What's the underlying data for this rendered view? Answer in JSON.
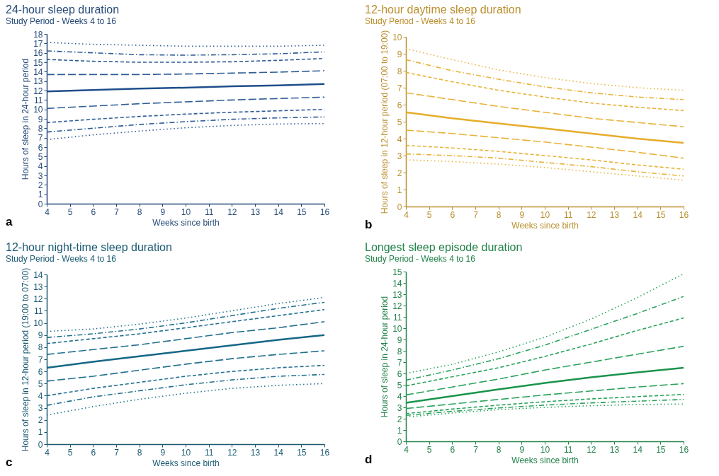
{
  "chart_data": [
    {
      "type": "line",
      "title": "24-hour sleep duration",
      "subtitle": "Study Period - Weeks 4 to 16",
      "xlabel": "Weeks since birth",
      "ylabel": "Hours of sleep in 24-hour period",
      "annotations": [
        "a"
      ],
      "x": [
        4,
        6,
        8,
        10,
        12,
        14,
        16
      ],
      "xlim": [
        4,
        16
      ],
      "xticks": [
        4,
        5,
        6,
        7,
        8,
        9,
        10,
        11,
        12,
        13,
        14,
        15,
        16
      ],
      "ylim": [
        0,
        18
      ],
      "yticks": [
        0,
        1,
        2,
        3,
        4,
        5,
        6,
        7,
        8,
        9,
        10,
        11,
        12,
        13,
        14,
        15,
        16,
        17,
        18
      ],
      "series": [
        {
          "color": "#2f5d96",
          "line_style": "dotted",
          "values": [
            17.1,
            16.9,
            16.8,
            16.7,
            16.7,
            16.7,
            16.8
          ]
        },
        {
          "color": "#2f5d96",
          "line_style": "dashdot",
          "values": [
            16.2,
            16.0,
            15.8,
            15.75,
            15.8,
            15.9,
            16.1
          ]
        },
        {
          "color": "#2f5d96",
          "line_style": "dashed",
          "values": [
            15.3,
            15.1,
            15.0,
            15.0,
            15.05,
            15.2,
            15.4
          ]
        },
        {
          "color": "#2f5d96",
          "line_style": "longdash",
          "values": [
            13.7,
            13.7,
            13.7,
            13.75,
            13.85,
            13.95,
            14.1
          ]
        },
        {
          "color": "#1f4e8c",
          "line_style": "solid",
          "values": [
            11.9,
            12.05,
            12.2,
            12.3,
            12.45,
            12.55,
            12.7
          ]
        },
        {
          "color": "#2f5d96",
          "line_style": "longdash",
          "values": [
            10.1,
            10.35,
            10.6,
            10.8,
            11.0,
            11.15,
            11.3
          ]
        },
        {
          "color": "#2f5d96",
          "line_style": "dashed",
          "values": [
            8.6,
            8.95,
            9.25,
            9.5,
            9.7,
            9.85,
            10.0
          ]
        },
        {
          "color": "#2f5d96",
          "line_style": "dashdot",
          "values": [
            7.6,
            8.0,
            8.4,
            8.7,
            8.95,
            9.1,
            9.2
          ]
        },
        {
          "color": "#2f5d96",
          "line_style": "dotted",
          "values": [
            6.8,
            7.3,
            7.7,
            8.05,
            8.3,
            8.45,
            8.5
          ]
        }
      ]
    },
    {
      "type": "line",
      "title": "12-hour daytime sleep duration",
      "subtitle": "Study Period - Weeks 4 to 16",
      "xlabel": "Weeks since birth",
      "ylabel": "Hours of sleep in 12-hour period (07:00 to 19:00)",
      "annotations": [
        "b"
      ],
      "x": [
        4,
        6,
        8,
        10,
        12,
        14,
        16
      ],
      "xlim": [
        4,
        16
      ],
      "xticks": [
        4,
        5,
        6,
        7,
        8,
        9,
        10,
        11,
        12,
        13,
        14,
        15,
        16
      ],
      "ylim": [
        0,
        10
      ],
      "yticks": [
        0,
        1,
        2,
        3,
        4,
        5,
        6,
        7,
        8,
        9,
        10
      ],
      "series": [
        {
          "color": "#e8b33a",
          "line_style": "dotted",
          "values": [
            9.3,
            8.65,
            8.05,
            7.6,
            7.25,
            7.0,
            6.85
          ]
        },
        {
          "color": "#e8b33a",
          "line_style": "dashdot",
          "values": [
            8.65,
            8.0,
            7.5,
            7.05,
            6.7,
            6.45,
            6.3
          ]
        },
        {
          "color": "#e8b33a",
          "line_style": "dashed",
          "values": [
            7.9,
            7.35,
            6.85,
            6.45,
            6.1,
            5.85,
            5.65
          ]
        },
        {
          "color": "#e8b33a",
          "line_style": "longdash",
          "values": [
            6.7,
            6.3,
            5.9,
            5.55,
            5.2,
            4.95,
            4.7
          ]
        },
        {
          "color": "#e6ad2a",
          "line_style": "solid",
          "values": [
            5.55,
            5.2,
            4.9,
            4.6,
            4.3,
            4.0,
            3.75
          ]
        },
        {
          "color": "#e8b33a",
          "line_style": "longdash",
          "values": [
            4.5,
            4.3,
            4.05,
            3.8,
            3.5,
            3.2,
            2.85
          ]
        },
        {
          "color": "#e8b33a",
          "line_style": "dashed",
          "values": [
            3.6,
            3.45,
            3.25,
            3.0,
            2.75,
            2.45,
            2.2
          ]
        },
        {
          "color": "#e8b33a",
          "line_style": "dashdot",
          "values": [
            3.1,
            3.0,
            2.85,
            2.6,
            2.35,
            2.05,
            1.8
          ]
        },
        {
          "color": "#e8b33a",
          "line_style": "dotted",
          "values": [
            2.75,
            2.65,
            2.5,
            2.3,
            2.05,
            1.8,
            1.55
          ]
        }
      ]
    },
    {
      "type": "line",
      "title": "12-hour night-time sleep duration",
      "subtitle": "Study Period - Weeks 4 to 16",
      "xlabel": "Weeks since birth",
      "ylabel": "Hours of sleep in 12-hour period (19:00 to 07:00)",
      "annotations": [
        "c"
      ],
      "x": [
        4,
        6,
        8,
        10,
        12,
        14,
        16
      ],
      "xlim": [
        4,
        16
      ],
      "xticks": [
        4,
        5,
        6,
        7,
        8,
        9,
        10,
        11,
        12,
        13,
        14,
        15,
        16
      ],
      "ylim": [
        0,
        14
      ],
      "yticks": [
        0,
        1,
        2,
        3,
        4,
        5,
        6,
        7,
        8,
        9,
        10,
        11,
        12,
        13,
        14
      ],
      "series": [
        {
          "color": "#22708f",
          "line_style": "dotted",
          "values": [
            9.3,
            9.5,
            9.9,
            10.4,
            11.0,
            11.6,
            12.1
          ]
        },
        {
          "color": "#22708f",
          "line_style": "dashdot",
          "values": [
            8.8,
            9.1,
            9.5,
            10.0,
            10.6,
            11.2,
            11.7
          ]
        },
        {
          "color": "#22708f",
          "line_style": "dashed",
          "values": [
            8.3,
            8.7,
            9.1,
            9.6,
            10.1,
            10.6,
            11.1
          ]
        },
        {
          "color": "#22708f",
          "line_style": "longdash",
          "values": [
            7.4,
            7.8,
            8.2,
            8.7,
            9.2,
            9.6,
            10.1
          ]
        },
        {
          "color": "#146785",
          "line_style": "solid",
          "values": [
            6.3,
            6.8,
            7.25,
            7.7,
            8.15,
            8.6,
            9.0
          ]
        },
        {
          "color": "#22708f",
          "line_style": "longdash",
          "values": [
            5.2,
            5.6,
            6.1,
            6.6,
            7.05,
            7.4,
            7.7
          ]
        },
        {
          "color": "#22708f",
          "line_style": "dashed",
          "values": [
            4.0,
            4.6,
            5.1,
            5.6,
            6.0,
            6.3,
            6.5
          ]
        },
        {
          "color": "#22708f",
          "line_style": "dashdot",
          "values": [
            3.2,
            3.9,
            4.4,
            4.9,
            5.3,
            5.6,
            5.75
          ]
        },
        {
          "color": "#22708f",
          "line_style": "dotted",
          "values": [
            2.4,
            3.1,
            3.7,
            4.2,
            4.6,
            4.85,
            5.0
          ]
        }
      ]
    },
    {
      "type": "line",
      "title": "Longest sleep episode duration",
      "subtitle": "Study Period - Weeks 4 to 16",
      "xlabel": "Weeks since birth",
      "ylabel": "Hours of sleep in 24-hour period",
      "annotations": [
        "d"
      ],
      "x": [
        4,
        6,
        8,
        10,
        12,
        14,
        16
      ],
      "xlim": [
        4,
        16
      ],
      "xticks": [
        4,
        5,
        6,
        7,
        8,
        9,
        10,
        11,
        12,
        13,
        14,
        15,
        16
      ],
      "ylim": [
        0,
        15
      ],
      "yticks": [
        0,
        1,
        2,
        3,
        4,
        5,
        6,
        7,
        8,
        9,
        10,
        11,
        12,
        13,
        14,
        15
      ],
      "series": [
        {
          "color": "#2aa35c",
          "line_style": "dotted",
          "values": [
            6.0,
            6.8,
            7.9,
            9.2,
            10.8,
            12.7,
            14.8
          ]
        },
        {
          "color": "#2aa35c",
          "line_style": "dashdot",
          "values": [
            5.4,
            6.3,
            7.3,
            8.5,
            9.9,
            11.3,
            12.8
          ]
        },
        {
          "color": "#2aa35c",
          "line_style": "dashed",
          "values": [
            4.9,
            5.7,
            6.5,
            7.5,
            8.6,
            9.8,
            10.9
          ]
        },
        {
          "color": "#2aa35c",
          "line_style": "longdash",
          "values": [
            4.1,
            4.8,
            5.5,
            6.3,
            7.0,
            7.7,
            8.4
          ]
        },
        {
          "color": "#1a944c",
          "line_style": "solid",
          "values": [
            3.4,
            4.0,
            4.6,
            5.15,
            5.65,
            6.1,
            6.5
          ]
        },
        {
          "color": "#2aa35c",
          "line_style": "longdash",
          "values": [
            2.9,
            3.3,
            3.7,
            4.1,
            4.45,
            4.8,
            5.1
          ]
        },
        {
          "color": "#2aa35c",
          "line_style": "dashed",
          "values": [
            2.45,
            2.85,
            3.2,
            3.5,
            3.75,
            3.95,
            4.15
          ]
        },
        {
          "color": "#2aa35c",
          "line_style": "dashdot",
          "values": [
            2.3,
            2.65,
            2.95,
            3.2,
            3.4,
            3.55,
            3.7
          ]
        },
        {
          "color": "#2aa35c",
          "line_style": "dotted",
          "values": [
            2.15,
            2.5,
            2.8,
            3.0,
            3.15,
            3.25,
            3.3
          ]
        }
      ]
    }
  ]
}
